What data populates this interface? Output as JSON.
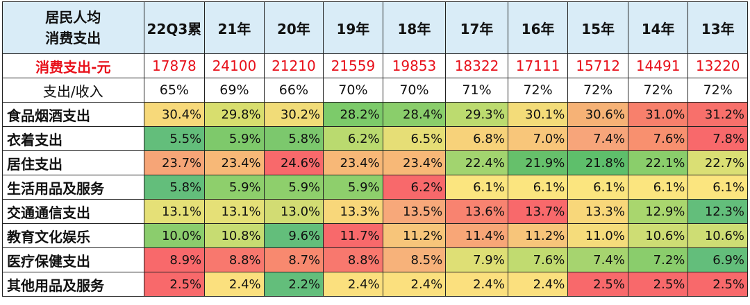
{
  "table": {
    "corner_line1": "居民人均",
    "corner_line2": "消费支出",
    "columns": [
      "22Q3累",
      "21年",
      "20年",
      "19年",
      "18年",
      "17年",
      "16年",
      "15年",
      "14年",
      "13年"
    ],
    "spend": {
      "label": "消费支出-元",
      "values": [
        "17878",
        "24100",
        "21210",
        "21559",
        "19853",
        "18322",
        "17111",
        "15712",
        "14491",
        "13220"
      ]
    },
    "ratio": {
      "label": "支出/收入",
      "values": [
        "65%",
        "69%",
        "66%",
        "70%",
        "70%",
        "71%",
        "72%",
        "72%",
        "72%",
        "72%"
      ]
    },
    "categories": [
      {
        "label": "食品烟酒支出",
        "values": [
          "30.4%",
          "29.8%",
          "30.2%",
          "28.2%",
          "28.4%",
          "29.3%",
          "30.1%",
          "30.6%",
          "31.0%",
          "31.2%"
        ],
        "colors": [
          "#f7d97a",
          "#d8de6e",
          "#f1dc78",
          "#7ccb6a",
          "#8ace6b",
          "#bcdb6f",
          "#f3dc79",
          "#f6b276",
          "#f8806c",
          "#f8706b"
        ]
      },
      {
        "label": "衣着支出",
        "values": [
          "5.5%",
          "5.9%",
          "5.8%",
          "6.2%",
          "6.5%",
          "6.8%",
          "7.0%",
          "7.4%",
          "7.6%",
          "7.8%"
        ],
        "colors": [
          "#63be7b",
          "#7ec96b",
          "#7cc86d",
          "#bada6f",
          "#e6de76",
          "#f7d27a",
          "#f8c67a",
          "#f7a57a",
          "#f8906f",
          "#f8696b"
        ]
      },
      {
        "label": "居住支出",
        "values": [
          "23.7%",
          "23.4%",
          "24.6%",
          "23.4%",
          "23.4%",
          "22.4%",
          "21.9%",
          "21.8%",
          "22.1%",
          "22.7%"
        ],
        "colors": [
          "#f6a577",
          "#f7b877",
          "#f8696b",
          "#f7b877",
          "#f7b877",
          "#a2d46f",
          "#66c06b",
          "#5ebf6b",
          "#8ace6b",
          "#dadf74"
        ]
      },
      {
        "label": "生活用品及服务",
        "values": [
          "5.8%",
          "5.9%",
          "5.9%",
          "5.9%",
          "6.2%",
          "6.1%",
          "6.1%",
          "6.1%",
          "6.1%",
          "6.1%"
        ],
        "colors": [
          "#63be7b",
          "#8ecf6c",
          "#8ecf6c",
          "#8ecf6c",
          "#f8696b",
          "#fbe57f",
          "#fbe57f",
          "#fbe57f",
          "#fbe57f",
          "#fbe57f"
        ]
      },
      {
        "label": "交通通信支出",
        "values": [
          "13.1%",
          "13.1%",
          "13.0%",
          "13.3%",
          "13.5%",
          "13.6%",
          "13.7%",
          "13.3%",
          "12.9%",
          "12.3%"
        ],
        "colors": [
          "#e5e077",
          "#e5e077",
          "#d2dc73",
          "#f8d77a",
          "#f7a87a",
          "#f88370",
          "#f8696b",
          "#f8d77a",
          "#a9d66e",
          "#63be7b"
        ]
      },
      {
        "label": "教育文化娱乐",
        "values": [
          "10.0%",
          "10.8%",
          "9.6%",
          "11.7%",
          "11.2%",
          "11.4%",
          "11.2%",
          "11.0%",
          "10.6%",
          "10.6%"
        ],
        "colors": [
          "#8bcd6d",
          "#c7dc72",
          "#63be7b",
          "#f8696b",
          "#f7c57a",
          "#f8a677",
          "#f7c57a",
          "#f5dc7b",
          "#cedd74",
          "#cedd74"
        ]
      },
      {
        "label": "医疗保健支出",
        "values": [
          "8.9%",
          "8.8%",
          "8.7%",
          "8.8%",
          "8.5%",
          "7.9%",
          "7.6%",
          "7.4%",
          "7.2%",
          "6.9%"
        ],
        "colors": [
          "#f8696b",
          "#f8786e",
          "#f8896f",
          "#f8786e",
          "#f7b27a",
          "#dedf75",
          "#c1db70",
          "#a6d46f",
          "#8acd6c",
          "#63be7b"
        ]
      },
      {
        "label": "其他用品及服务",
        "values": [
          "2.5%",
          "2.4%",
          "2.2%",
          "2.4%",
          "2.4%",
          "2.4%",
          "2.4%",
          "2.5%",
          "2.5%",
          "2.5%"
        ],
        "colors": [
          "#f8696b",
          "#fbe07e",
          "#63be7b",
          "#fbe07e",
          "#fbe07e",
          "#fbe07e",
          "#fbe07e",
          "#f8696b",
          "#f8696b",
          "#f8696b"
        ]
      }
    ]
  }
}
